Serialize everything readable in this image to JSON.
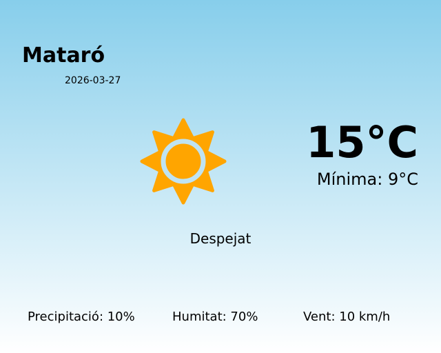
{
  "location": {
    "city": "Mataró",
    "date": "2026-03-27"
  },
  "weather": {
    "icon": "sun-icon",
    "temperature": "15°C",
    "minimum": "Mínima: 9°C",
    "condition": "Despejat"
  },
  "stats": {
    "precipitation": "Precipitació: 10%",
    "humidity": "Humitat: 70%",
    "wind": "Vent: 10 km/h"
  },
  "colors": {
    "sun": "#ffa500",
    "sky_top": "#87ceeb",
    "sky_bottom": "#ffffff"
  }
}
